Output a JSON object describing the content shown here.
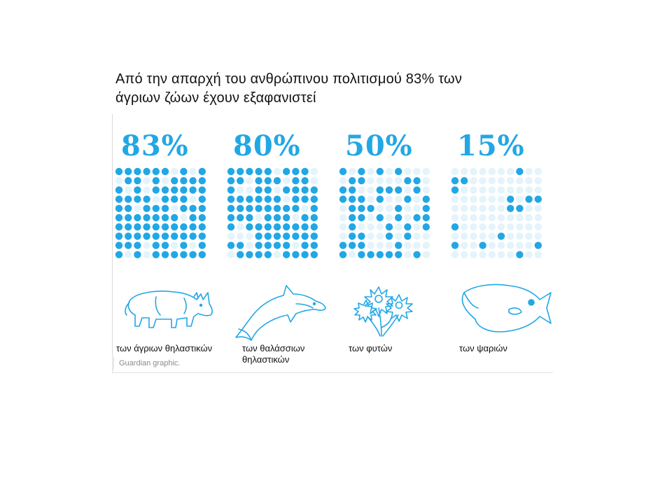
{
  "title": {
    "line1": "Από την απαρχή του ανθρώπινου πολιτισμού 83% των",
    "line2": "άγριων ζώων έχουν εξαφανιστεί"
  },
  "colors": {
    "accent": "#22a7e5",
    "faded": "#e5f3fb",
    "outline": "#22a7e5"
  },
  "chart_data": {
    "type": "waffle",
    "panels": [
      {
        "percent_label": "83%",
        "value": 83,
        "icon": "rhino-icon",
        "label_lines": [
          "των άγριων θηλαστικών"
        ]
      },
      {
        "percent_label": "80%",
        "value": 80,
        "icon": "dolphin-icon",
        "label_lines": [
          "των θαλάσσιων",
          "θηλαστικών"
        ]
      },
      {
        "percent_label": "50%",
        "value": 50,
        "icon": "flowers-icon",
        "label_lines": [
          "των φυτών"
        ]
      },
      {
        "percent_label": "15%",
        "value": 15,
        "icon": "fish-icon",
        "label_lines": [
          "των  ψαριών"
        ]
      }
    ]
  },
  "source": "Guardian graphic."
}
